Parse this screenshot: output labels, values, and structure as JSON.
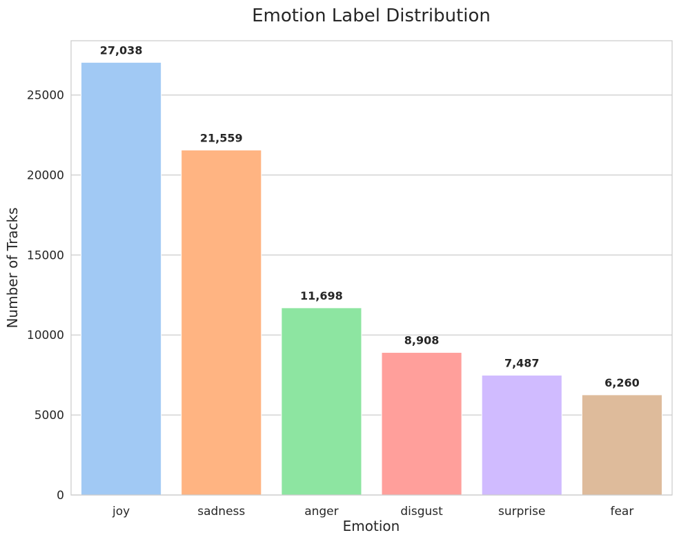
{
  "chart_data": {
    "type": "bar",
    "title": "Emotion Label Distribution",
    "xlabel": "Emotion",
    "ylabel": "Number of Tracks",
    "categories": [
      "joy",
      "sadness",
      "anger",
      "disgust",
      "surprise",
      "fear"
    ],
    "values": [
      27038,
      21559,
      11698,
      8908,
      7487,
      6260
    ],
    "value_labels": [
      "27,038",
      "21,559",
      "11,698",
      "8,908",
      "7,487",
      "6,260"
    ],
    "colors": [
      "#a1c9f4",
      "#ffb482",
      "#8de5a1",
      "#ff9f9b",
      "#d0bbff",
      "#debb9b"
    ],
    "yticks": [
      0,
      5000,
      10000,
      15000,
      20000,
      25000
    ],
    "ytick_labels": [
      "0",
      "5000",
      "10000",
      "15000",
      "20000",
      "25000"
    ],
    "ylim": [
      0,
      28390
    ],
    "grid": "horizontal",
    "legend": "none"
  }
}
